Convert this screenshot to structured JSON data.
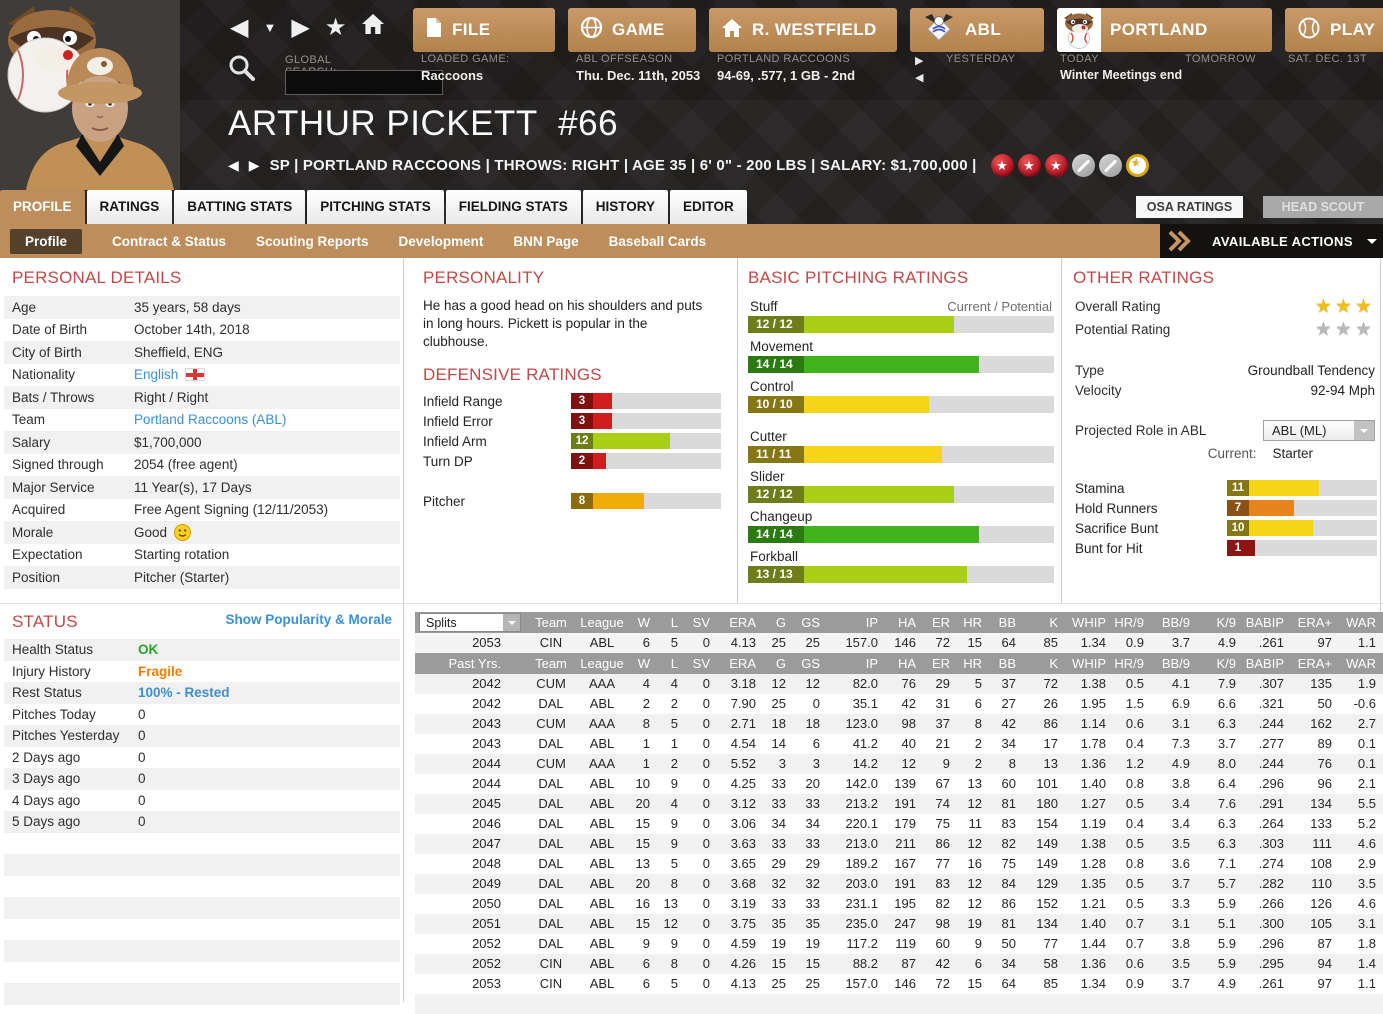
{
  "theme": {
    "accent_tan": "#bd8d5c",
    "dark_bg": "#262423",
    "title_red": "#c04949",
    "link_blue": "#3d8fd0",
    "green": "#28a228",
    "orange": "#f07c00"
  },
  "topbar": {
    "search_label": "GLOBAL SEARCH:",
    "search_value": "",
    "menus": {
      "file": "FILE",
      "game": "GAME",
      "manager": "R. WESTFIELD",
      "league": "ABL",
      "team": "PORTLAND",
      "play": "PLAY"
    },
    "captions": {
      "loaded_label": "LOADED GAME:",
      "loaded_value": "Raccoons",
      "phase_label": "ABL OFFSEASON",
      "phase_value": "Thu. Dec. 11th, 2053",
      "team_label": "PORTLAND RACCOONS",
      "team_value": "94-69, .577, 1 GB - 2nd",
      "yesterday": "YESTERDAY",
      "today": "TODAY",
      "today_note": "Winter Meetings end",
      "tomorrow": "TOMORROW",
      "next_date": "SAT. DEC. 13T"
    }
  },
  "player": {
    "name": "ARTHUR PICKETT",
    "number": "#66",
    "info": "SP | PORTLAND RACCOONS  |  THROWS: RIGHT  |  AGE 35  |  6' 0\" - 200 LBS  |  SALARY: $1,700,000  |",
    "badges": [
      "star",
      "star",
      "star",
      "na",
      "na",
      "half"
    ]
  },
  "tabs": {
    "items": [
      "PROFILE",
      "RATINGS",
      "BATTING STATS",
      "PITCHING STATS",
      "FIELDING STATS",
      "HISTORY",
      "EDITOR"
    ],
    "active": 0,
    "osa_button": "OSA RATINGS",
    "head_scout_button": "HEAD SCOUT"
  },
  "subnav": {
    "items": [
      "Profile",
      "Contract & Status",
      "Scouting Reports",
      "Development",
      "BNN Page",
      "Baseball Cards"
    ],
    "active": 0,
    "actions_label": "AVAILABLE ACTIONS"
  },
  "personal": {
    "title": "PERSONAL DETAILS",
    "rows": [
      {
        "label": "Age",
        "value": "35 years, 58 days",
        "cls": ""
      },
      {
        "label": "Date of Birth",
        "value": "October 14th, 2018",
        "cls": ""
      },
      {
        "label": "City of Birth",
        "value": "Sheffield, ENG",
        "cls": ""
      },
      {
        "label": "Nationality",
        "value": "English",
        "cls": "v-link",
        "icon": "flag",
        "link": true
      },
      {
        "label": "Bats / Throws",
        "value": "Right / Right",
        "cls": ""
      },
      {
        "label": "Team",
        "value": "Portland Raccoons (ABL)",
        "cls": "v-link",
        "link": true
      },
      {
        "label": "Salary",
        "value": "$1,700,000",
        "cls": ""
      },
      {
        "label": "Signed through",
        "value": "2054 (free agent)",
        "cls": ""
      },
      {
        "label": "Major Service",
        "value": "11 Year(s), 17 Days",
        "cls": ""
      },
      {
        "label": "Acquired",
        "value": "Free Agent Signing (12/11/2053)",
        "cls": ""
      },
      {
        "label": "Morale",
        "value": "Good",
        "cls": "",
        "icon": "smiley"
      },
      {
        "label": "Expectation",
        "value": "Starting rotation",
        "cls": ""
      },
      {
        "label": "Position",
        "value": "Pitcher (Starter)",
        "cls": ""
      }
    ]
  },
  "personality": {
    "title": "PERSONALITY",
    "text": "He has a good head on his shoulders and puts in long hours. Pickett is popular in the clubhouse."
  },
  "defensive": {
    "title": "DEFENSIVE RATINGS",
    "items": [
      {
        "label": "Infield Range",
        "value": 3,
        "fill": "#d01d1d",
        "box": "#7f1111"
      },
      {
        "label": "Infield Error",
        "value": 3,
        "fill": "#d01d1d",
        "box": "#7f1111"
      },
      {
        "label": "Infield Arm",
        "value": 12,
        "fill": "#a9ce16",
        "box": "#6f7d18"
      },
      {
        "label": "Turn DP",
        "value": 2,
        "fill": "#d01d1d",
        "box": "#7f1111"
      },
      {
        "label": "Pitcher",
        "value": 8,
        "fill": "#f0ad07",
        "box": "#8a6b0e",
        "gap": true
      }
    ]
  },
  "pitching": {
    "title": "BASIC PITCHING RATINGS",
    "header_right": "Current / Potential",
    "items": [
      {
        "label": "Stuff",
        "display": "12 / 12",
        "value": 12,
        "fill": "#a9ce16",
        "box": "#6f7d18"
      },
      {
        "label": "Movement",
        "display": "14 / 14",
        "value": 14,
        "fill": "#41b41d",
        "box": "#2c7a12"
      },
      {
        "label": "Control",
        "display": "10 / 10",
        "value": 10,
        "fill": "#f6d419",
        "box": "#857714"
      },
      {
        "label": "Cutter",
        "display": "11 / 11",
        "value": 11,
        "fill": "#f6d419",
        "box": "#857714",
        "sep": true
      },
      {
        "label": "Slider",
        "display": "12 / 12",
        "value": 12,
        "fill": "#a9ce16",
        "box": "#6f7d18"
      },
      {
        "label": "Changeup",
        "display": "14 / 14",
        "value": 14,
        "fill": "#41b41d",
        "box": "#2c7a12"
      },
      {
        "label": "Forkball",
        "display": "13 / 13",
        "value": 13,
        "fill": "#a9ce16",
        "box": "#6f7d18"
      }
    ]
  },
  "other": {
    "title": "OTHER RATINGS",
    "overall_label": "Overall Rating",
    "overall_stars": 3,
    "potential_label": "Potential Rating",
    "potential_stars": 3,
    "type_label": "Type",
    "type_value": "Groundball Tendency",
    "velocity_label": "Velocity",
    "velocity_value": "92-94 Mph",
    "role_label": "Projected Role in ABL",
    "role_value": "ABL (ML)",
    "current_label": "Current:",
    "current_value": "Starter",
    "bars": [
      {
        "label": "Stamina",
        "value": 11,
        "fill": "#f6d419",
        "box": "#857714"
      },
      {
        "label": "Hold Runners",
        "value": 7,
        "fill": "#e5831d",
        "box": "#8a5216"
      },
      {
        "label": "Sacrifice Bunt",
        "value": 10,
        "fill": "#f6d419",
        "box": "#857714"
      },
      {
        "label": "Bunt for Hit",
        "value": 1,
        "fill": "#8c1414",
        "box": "#8c1414"
      }
    ]
  },
  "status": {
    "title": "STATUS",
    "link": "Show Popularity & Morale",
    "rows": [
      {
        "label": "Health Status",
        "value": "OK",
        "cls": "v-green"
      },
      {
        "label": "Injury History",
        "value": "Fragile",
        "cls": "v-orange"
      },
      {
        "label": "Rest Status",
        "value": "100% - Rested",
        "cls": "v-link-b"
      },
      {
        "label": "Pitches Today",
        "value": "0",
        "cls": ""
      },
      {
        "label": "Pitches Yesterday",
        "value": "0",
        "cls": ""
      },
      {
        "label": "2 Days ago",
        "value": "0",
        "cls": ""
      },
      {
        "label": "3 Days ago",
        "value": "0",
        "cls": ""
      },
      {
        "label": "4 Days ago",
        "value": "0",
        "cls": ""
      },
      {
        "label": "5 Days ago",
        "value": "0",
        "cls": ""
      }
    ]
  },
  "stats": {
    "splits_label": "Splits",
    "past_label": "Past Yrs.",
    "columns": [
      "Team",
      "League",
      "W",
      "L",
      "SV",
      "ERA",
      "G",
      "GS",
      "IP",
      "HA",
      "ER",
      "HR",
      "BB",
      "K",
      "WHIP",
      "HR/9",
      "BB/9",
      "K/9",
      "BABIP",
      "ERA+",
      "WAR"
    ],
    "current_row": {
      "year": "2053",
      "cells": [
        "CIN",
        "ABL",
        "6",
        "5",
        "0",
        "4.13",
        "25",
        "25",
        "157.0",
        "146",
        "72",
        "15",
        "64",
        "85",
        "1.34",
        "0.9",
        "3.7",
        "4.9",
        ".261",
        "97",
        "1.1"
      ]
    },
    "rows": [
      {
        "year": "2042",
        "cells": [
          "CUM",
          "AAA",
          "4",
          "4",
          "0",
          "3.18",
          "12",
          "12",
          "82.0",
          "76",
          "29",
          "5",
          "37",
          "72",
          "1.38",
          "0.5",
          "4.1",
          "7.9",
          ".307",
          "135",
          "1.9"
        ]
      },
      {
        "year": "2042",
        "cells": [
          "DAL",
          "ABL",
          "2",
          "2",
          "0",
          "7.90",
          "25",
          "0",
          "35.1",
          "42",
          "31",
          "6",
          "27",
          "26",
          "1.95",
          "1.5",
          "6.9",
          "6.6",
          ".321",
          "50",
          "-0.6"
        ]
      },
      {
        "year": "2043",
        "cells": [
          "CUM",
          "AAA",
          "8",
          "5",
          "0",
          "2.71",
          "18",
          "18",
          "123.0",
          "98",
          "37",
          "8",
          "42",
          "86",
          "1.14",
          "0.6",
          "3.1",
          "6.3",
          ".244",
          "162",
          "2.7"
        ]
      },
      {
        "year": "2043",
        "cells": [
          "DAL",
          "ABL",
          "1",
          "1",
          "0",
          "4.54",
          "14",
          "6",
          "41.2",
          "40",
          "21",
          "2",
          "34",
          "17",
          "1.78",
          "0.4",
          "7.3",
          "3.7",
          ".277",
          "89",
          "0.1"
        ]
      },
      {
        "year": "2044",
        "cells": [
          "CUM",
          "AAA",
          "1",
          "2",
          "0",
          "5.52",
          "3",
          "3",
          "14.2",
          "12",
          "9",
          "2",
          "8",
          "13",
          "1.36",
          "1.2",
          "4.9",
          "8.0",
          ".244",
          "76",
          "0.1"
        ]
      },
      {
        "year": "2044",
        "cells": [
          "DAL",
          "ABL",
          "10",
          "9",
          "0",
          "4.25",
          "33",
          "20",
          "142.0",
          "139",
          "67",
          "13",
          "60",
          "101",
          "1.40",
          "0.8",
          "3.8",
          "6.4",
          ".296",
          "96",
          "2.1"
        ]
      },
      {
        "year": "2045",
        "cells": [
          "DAL",
          "ABL",
          "20",
          "4",
          "0",
          "3.12",
          "33",
          "33",
          "213.2",
          "191",
          "74",
          "12",
          "81",
          "180",
          "1.27",
          "0.5",
          "3.4",
          "7.6",
          ".291",
          "134",
          "5.5"
        ]
      },
      {
        "year": "2046",
        "cells": [
          "DAL",
          "ABL",
          "15",
          "9",
          "0",
          "3.06",
          "34",
          "34",
          "220.1",
          "179",
          "75",
          "11",
          "83",
          "154",
          "1.19",
          "0.4",
          "3.4",
          "6.3",
          ".264",
          "133",
          "5.2"
        ]
      },
      {
        "year": "2047",
        "cells": [
          "DAL",
          "ABL",
          "15",
          "9",
          "0",
          "3.63",
          "33",
          "33",
          "213.0",
          "211",
          "86",
          "12",
          "82",
          "149",
          "1.38",
          "0.5",
          "3.5",
          "6.3",
          ".303",
          "111",
          "4.6"
        ]
      },
      {
        "year": "2048",
        "cells": [
          "DAL",
          "ABL",
          "13",
          "5",
          "0",
          "3.65",
          "29",
          "29",
          "189.2",
          "167",
          "77",
          "16",
          "75",
          "149",
          "1.28",
          "0.8",
          "3.6",
          "7.1",
          ".274",
          "108",
          "2.9"
        ]
      },
      {
        "year": "2049",
        "cells": [
          "DAL",
          "ABL",
          "20",
          "8",
          "0",
          "3.68",
          "32",
          "32",
          "203.0",
          "191",
          "83",
          "12",
          "84",
          "129",
          "1.35",
          "0.5",
          "3.7",
          "5.7",
          ".282",
          "110",
          "3.5"
        ]
      },
      {
        "year": "2050",
        "cells": [
          "DAL",
          "ABL",
          "16",
          "13",
          "0",
          "3.19",
          "33",
          "33",
          "231.1",
          "195",
          "82",
          "12",
          "86",
          "152",
          "1.21",
          "0.5",
          "3.3",
          "5.9",
          ".266",
          "126",
          "4.6"
        ]
      },
      {
        "year": "2051",
        "cells": [
          "DAL",
          "ABL",
          "15",
          "12",
          "0",
          "3.75",
          "35",
          "35",
          "235.0",
          "247",
          "98",
          "19",
          "81",
          "134",
          "1.40",
          "0.7",
          "3.1",
          "5.1",
          ".300",
          "105",
          "3.1"
        ],
        "gs_red": true
      },
      {
        "year": "2052",
        "cells": [
          "DAL",
          "ABL",
          "9",
          "9",
          "0",
          "4.59",
          "19",
          "19",
          "117.2",
          "119",
          "60",
          "9",
          "50",
          "77",
          "1.44",
          "0.7",
          "3.8",
          "5.9",
          ".296",
          "87",
          "1.8"
        ]
      },
      {
        "year": "2052",
        "cells": [
          "CIN",
          "ABL",
          "6",
          "8",
          "0",
          "4.26",
          "15",
          "15",
          "88.2",
          "87",
          "42",
          "6",
          "34",
          "58",
          "1.36",
          "0.6",
          "3.5",
          "5.9",
          ".295",
          "94",
          "1.4"
        ]
      },
      {
        "year": "2053",
        "cells": [
          "CIN",
          "ABL",
          "6",
          "5",
          "0",
          "4.13",
          "25",
          "25",
          "157.0",
          "146",
          "72",
          "15",
          "64",
          "85",
          "1.34",
          "0.9",
          "3.7",
          "4.9",
          ".261",
          "97",
          "1.1"
        ]
      }
    ]
  }
}
